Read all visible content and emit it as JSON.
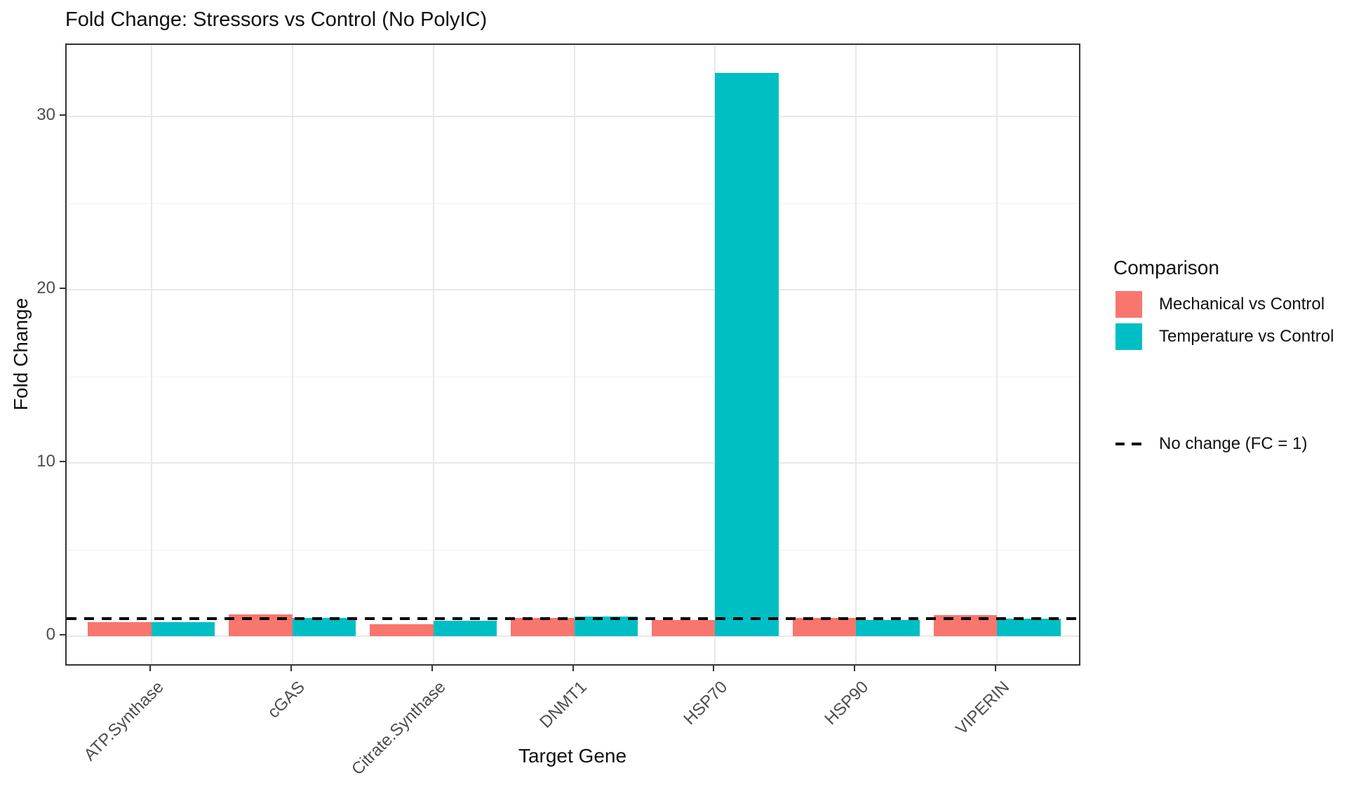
{
  "title": "Fold Change: Stressors vs Control (No PolyIC)",
  "chart_data": {
    "type": "bar",
    "title": "Fold Change: Stressors vs Control (No PolyIC)",
    "xlabel": "Target Gene",
    "ylabel": "Fold Change",
    "categories": [
      "ATP.Synthase",
      "cGAS",
      "Citrate.Synthase",
      "DNMT1",
      "HSP70",
      "HSP90",
      "VIPERIN"
    ],
    "series": [
      {
        "name": "Mechanical vs Control",
        "color": "#F8766D",
        "values": [
          0.8,
          1.25,
          0.7,
          1.05,
          0.95,
          1.05,
          1.2
        ]
      },
      {
        "name": "Temperature vs Control",
        "color": "#00BFC4",
        "values": [
          0.8,
          1.05,
          0.9,
          1.15,
          32.5,
          0.95,
          1.0
        ]
      }
    ],
    "yticks": [
      0,
      10,
      20,
      30
    ],
    "yticks_minor": [
      5,
      15,
      25
    ],
    "ylim": [
      -1.8,
      34.1
    ],
    "grid": true,
    "legend_position": "right",
    "legend_title": "Comparison",
    "reference_line": {
      "value": 1,
      "label": "No change (FC = 1)",
      "style": "dashed",
      "color": "#000000"
    }
  },
  "legend": {
    "title": "Comparison",
    "items": [
      {
        "label": "Mechanical vs Control",
        "color": "#F8766D"
      },
      {
        "label": "Temperature vs Control",
        "color": "#00BFC4"
      }
    ],
    "ref_label": "No change (FC = 1)"
  },
  "colors": {
    "mechanical": "#F8766D",
    "temperature": "#00BFC4",
    "panel_border": "#333333",
    "grid_major": "#e8e8e8",
    "grid_minor": "#f0f0f0",
    "tick_text": "#4d4d4d",
    "reference": "#000000"
  }
}
